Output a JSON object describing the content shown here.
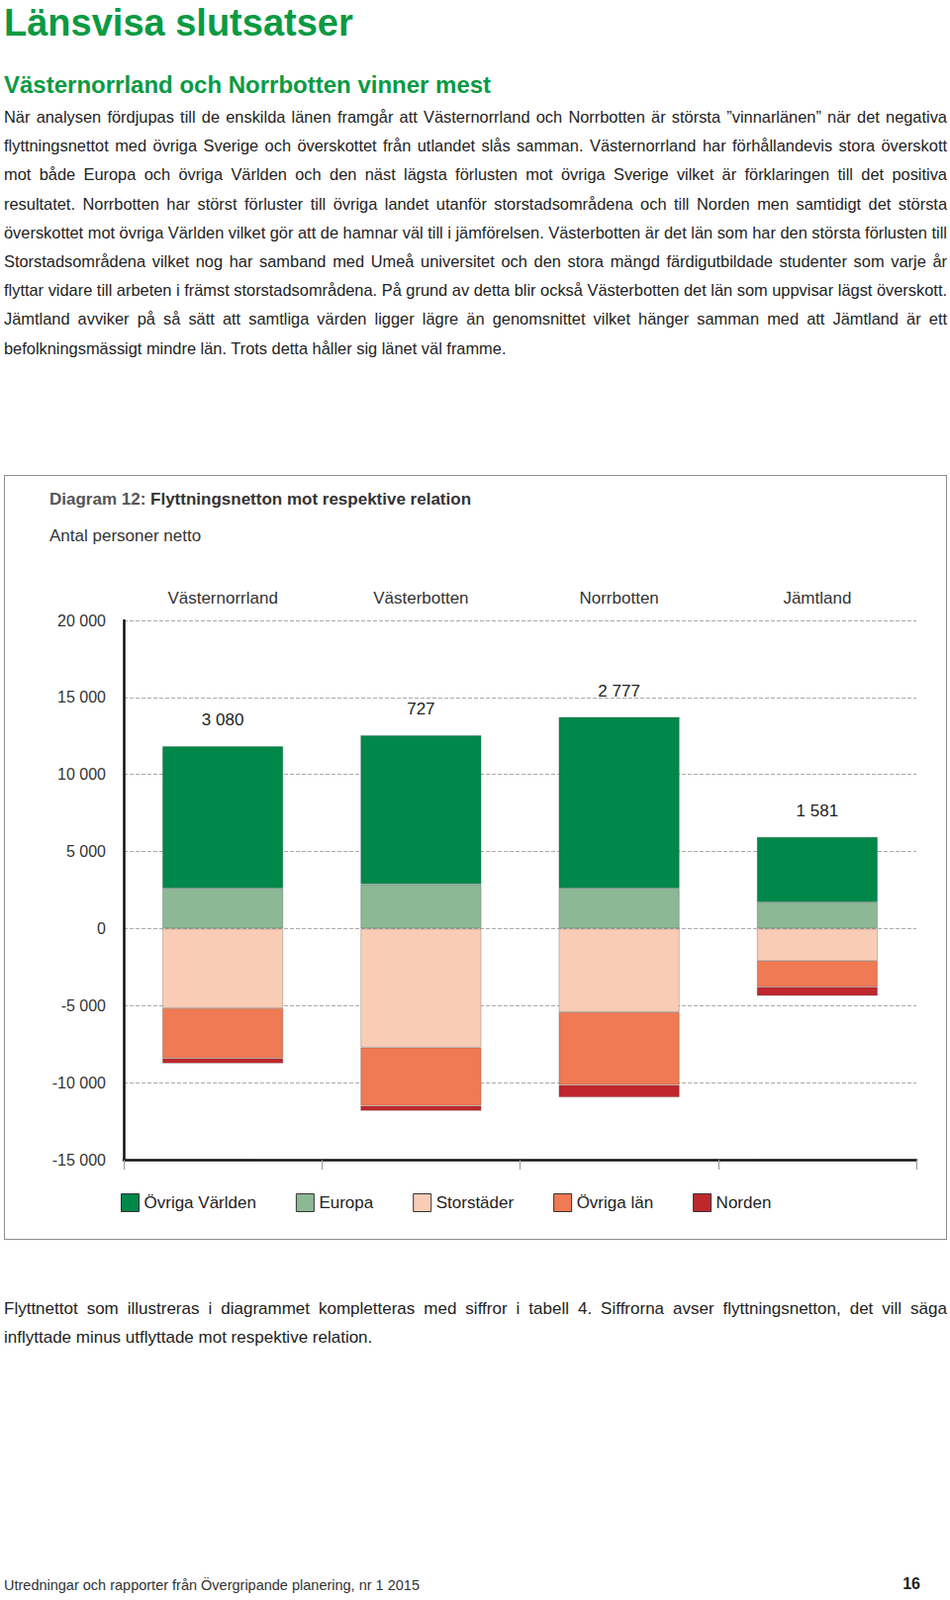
{
  "header": {
    "title": "Länsvisa slutsatser",
    "subtitle": "Västernorrland och Norrbotten vinner mest"
  },
  "body": "När analysen fördjupas till de enskilda länen framgår att Västernorrland och Norrbotten är största ”vinnarlänen” när det negativa flyttningsnettot med övriga Sverige och överskottet från utlandet slås samman. Västernorrland har förhållandevis stora överskott mot både Europa och övriga Världen och den näst lägsta förlusten mot övriga Sverige vilket är förklaringen till det positiva resultatet. Norrbotten har störst förluster till övriga landet utanför storstadsområdena och till Norden men samtidigt det största överskottet mot övriga Världen vilket gör att de hamnar väl till i jämförelsen. Västerbotten är det län som har den största förlusten till Storstadsområdena vilket nog har samband med Umeå universitet och den stora mängd färdigutbildade studenter som varje år flyttar vidare till arbeten i främst storstadsområdena. På grund av detta blir också Västerbotten det län som uppvisar lägst överskott. Jämtland avviker på så sätt att samtliga värden ligger lägre än genomsnittet vilket hänger samman med att Jämtland är ett befolkningsmässigt mindre län. Trots detta håller sig länet väl framme.",
  "chart_data": {
    "type": "bar",
    "stacked": true,
    "title": "Diagram 12: Flyttningsnetton mot respektive relation",
    "subtitle": "Antal personer netto",
    "categories": [
      "Västernorrland",
      "Västerbotten",
      "Norrbotten",
      "Jämtland"
    ],
    "series": [
      {
        "name": "Övriga Världen",
        "color": "#00874a",
        "values": [
          9220,
          9670,
          11120,
          4250
        ]
      },
      {
        "name": "Europa",
        "color": "#8db896",
        "values": [
          2610,
          2880,
          2610,
          1700
        ]
      },
      {
        "name": "Storstäder",
        "color": "#f9cdb5",
        "values": [
          -5160,
          -7720,
          -5420,
          -2090
        ]
      },
      {
        "name": "Övriga län",
        "color": "#f07a53",
        "values": [
          -3270,
          -3790,
          -4733,
          -1700
        ]
      },
      {
        "name": "Norden",
        "color": "#c0272d",
        "values": [
          -320,
          -313,
          -800,
          -579
        ]
      }
    ],
    "net_values": [
      3080,
      727,
      2777,
      1581
    ],
    "net_labels": [
      "3 080",
      "727",
      "2 777",
      "1 581"
    ],
    "ylim": [
      -15000,
      20000
    ],
    "yticks": [
      {
        "value": -15000,
        "label": "-15 000"
      },
      {
        "value": -10000,
        "label": "-10 000"
      },
      {
        "value": -5000,
        "label": "-5 000"
      },
      0,
      {
        "value": 5000,
        "label": "5 000"
      },
      {
        "value": 10000,
        "label": "10 000"
      },
      {
        "value": 15000,
        "label": "15 000"
      },
      {
        "value": 20000,
        "label": "20 000"
      }
    ],
    "grid": true,
    "legend": "bottom"
  },
  "caption": "Flyttnettot som illustreras i diagrammet kompletteras med siffror i tabell 4. Siffrorna avser flyttningsnetton, det vill säga inflyttade minus utflyttade mot respektive relation.",
  "footer": {
    "text": "Utredningar och rapporter från Övergripande planering, nr 1 2015",
    "page": "16"
  }
}
